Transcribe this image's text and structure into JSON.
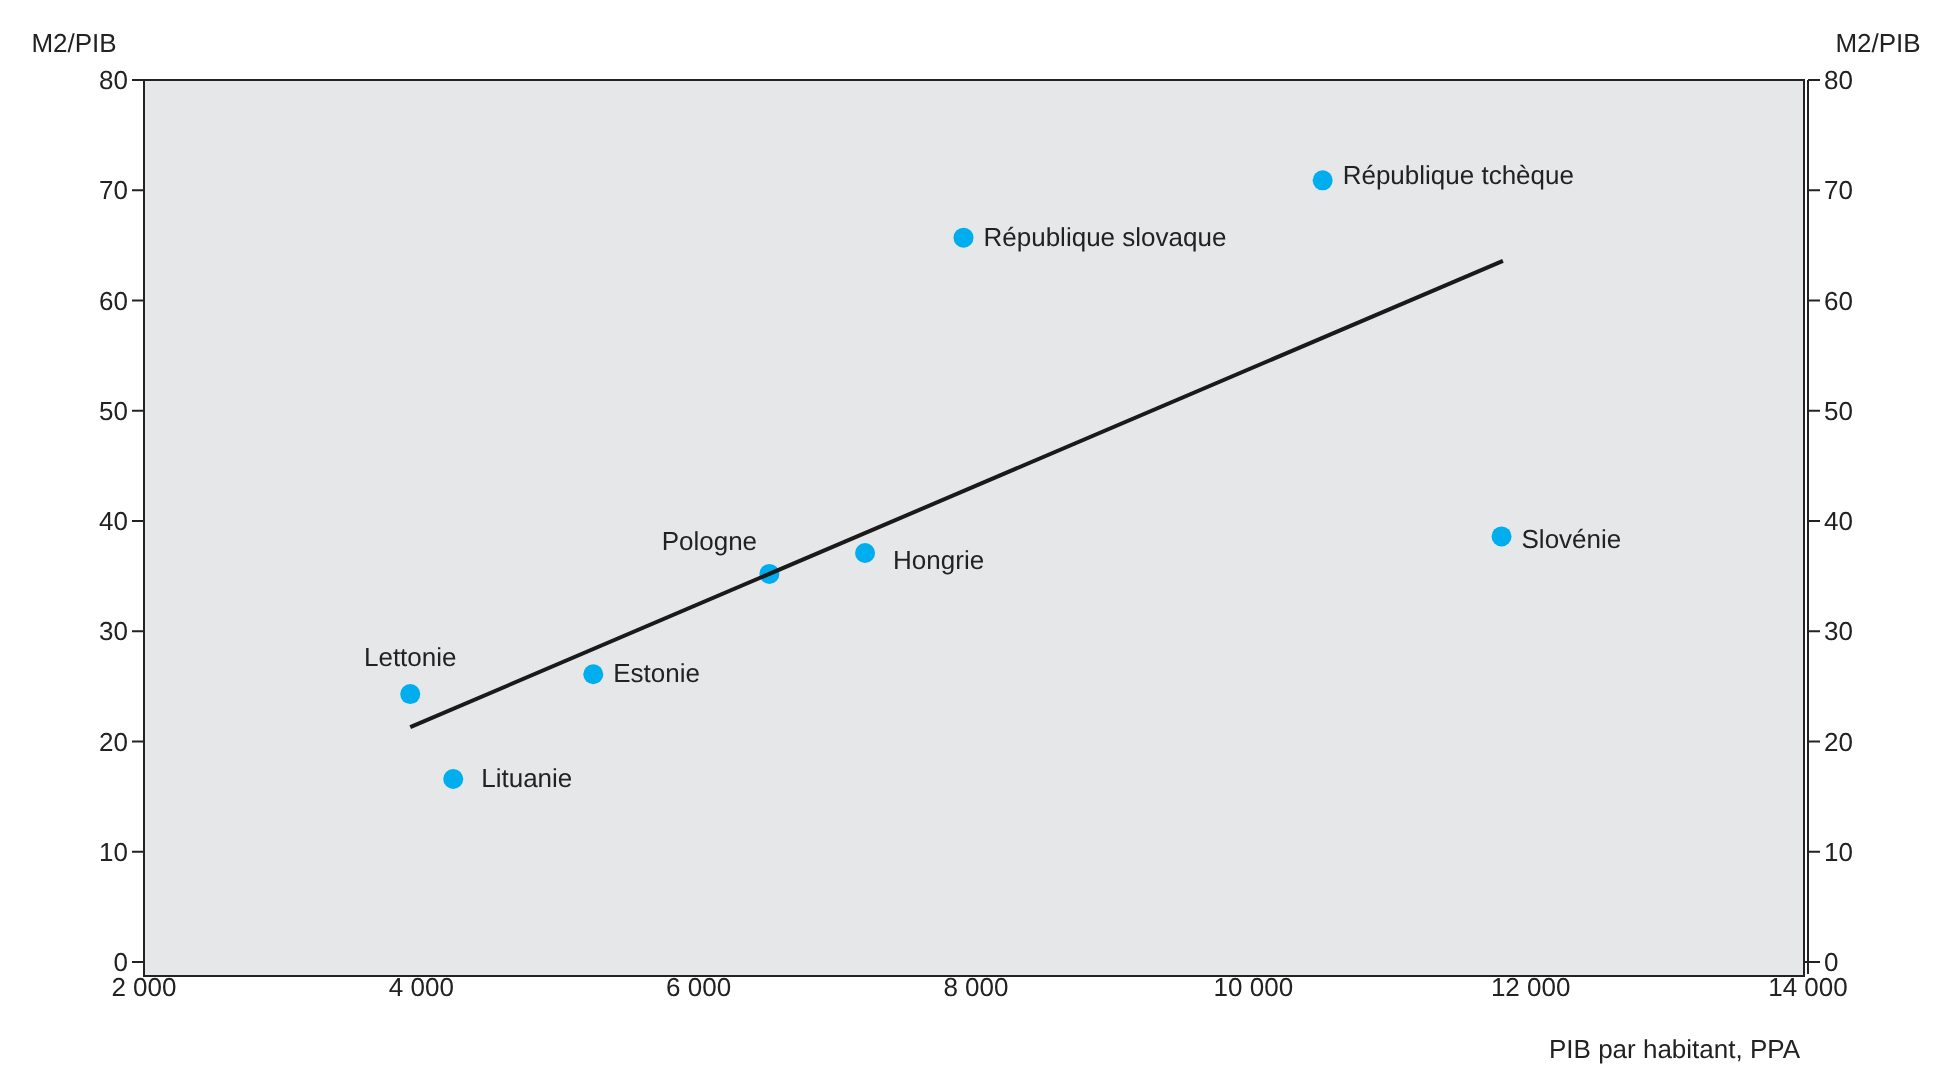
{
  "chart_data": {
    "type": "scatter",
    "xlabel": "PIB par habitant, PPA",
    "ylabel": "M2/PIB",
    "y2label": "M2/PIB",
    "xlim": [
      2000,
      14000
    ],
    "xticks": [
      {
        "value": 2000,
        "label": "2 000"
      },
      {
        "value": 4000,
        "label": "4 000"
      },
      {
        "value": 6000,
        "label": "6 000"
      },
      {
        "value": 8000,
        "label": "8 000"
      },
      {
        "value": 10000,
        "label": "10 000"
      },
      {
        "value": 12000,
        "label": "12 000"
      },
      {
        "value": 14000,
        "label": "14 000"
      }
    ],
    "ylim": [
      0,
      80
    ],
    "yticks": [
      0,
      10,
      20,
      30,
      40,
      50,
      60,
      70,
      80
    ],
    "y2lim": [
      0,
      80
    ],
    "y2ticks": [
      0,
      10,
      20,
      30,
      40,
      50,
      60,
      70,
      80
    ],
    "series": [
      {
        "marker": "circle",
        "color": "#00aeef",
        "x": [
          3920,
          4230,
          5240,
          6510,
          7200,
          7910,
          10500,
          11790
        ],
        "values": [
          24.3,
          16.6,
          26.1,
          35.2,
          37.1,
          65.7,
          70.9,
          38.6
        ]
      },
      {
        "type": "line",
        "color": "#1a1a1a",
        "x": [
          3920,
          11800
        ],
        "values": [
          21.3,
          63.6
        ]
      }
    ],
    "annotations": [
      {
        "text": "Lettonie",
        "x": 3920,
        "y": 24.3
      },
      {
        "text": "Lituanie",
        "x": 4230,
        "y": 16.6
      },
      {
        "text": "Estonie",
        "x": 5240,
        "y": 26.1
      },
      {
        "text": "Pologne",
        "x": 6510,
        "y": 35.2
      },
      {
        "text": "Hongrie",
        "x": 7200,
        "y": 37.1
      },
      {
        "text": "République slovaque",
        "x": 7910,
        "y": 65.7
      },
      {
        "text": "République tchèque",
        "x": 10500,
        "y": 70.9
      },
      {
        "text": "Slovénie",
        "x": 11790,
        "y": 38.6
      }
    ]
  }
}
